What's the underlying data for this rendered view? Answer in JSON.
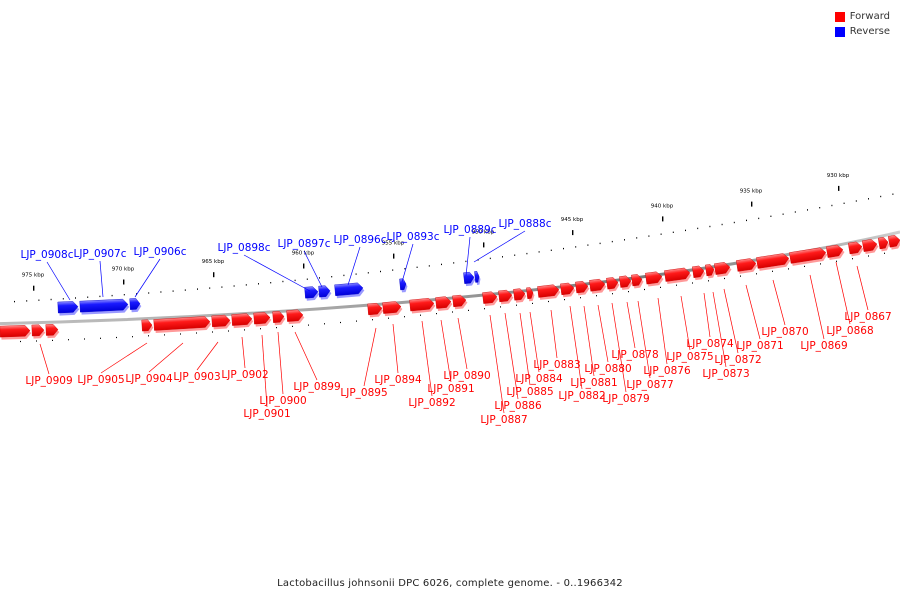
{
  "title": "Lactobacillus johnsonii DPC 6026, complete genome. - 0..1966342",
  "legend": {
    "forward_label": "Forward",
    "reverse_label": "Reverse",
    "forward_color": "#ff0000",
    "reverse_color": "#0000ff"
  },
  "colors": {
    "forward": "#ff0000",
    "reverse": "#0000ff",
    "axis": "#888888",
    "tick": "#000000"
  },
  "scale_labels": [
    "930 kbp",
    "935 kbp",
    "940 kbp",
    "945 kbp",
    "950 kbp",
    "955 kbp",
    "960 kbp",
    "965 kbp",
    "970 kbp",
    "975 kbp"
  ],
  "genes": [
    {
      "label": "LJP_0867",
      "strand": "forward"
    },
    {
      "label": "LJP_0868",
      "strand": "forward"
    },
    {
      "label": "LJP_0869",
      "strand": "forward"
    },
    {
      "label": "LJP_0870",
      "strand": "forward"
    },
    {
      "label": "LJP_0871",
      "strand": "forward"
    },
    {
      "label": "LJP_0872",
      "strand": "forward"
    },
    {
      "label": "LJP_0873",
      "strand": "forward"
    },
    {
      "label": "LJP_0874",
      "strand": "forward"
    },
    {
      "label": "LJP_0875",
      "strand": "forward"
    },
    {
      "label": "LJP_0876",
      "strand": "forward"
    },
    {
      "label": "LJP_0877",
      "strand": "forward"
    },
    {
      "label": "LJP_0878",
      "strand": "forward"
    },
    {
      "label": "LJP_0879",
      "strand": "forward"
    },
    {
      "label": "LJP_0880",
      "strand": "forward"
    },
    {
      "label": "LJP_0881",
      "strand": "forward"
    },
    {
      "label": "LJP_0882",
      "strand": "forward"
    },
    {
      "label": "LJP_0883",
      "strand": "forward"
    },
    {
      "label": "LJP_0884",
      "strand": "forward"
    },
    {
      "label": "LJP_0885",
      "strand": "forward"
    },
    {
      "label": "LJP_0886",
      "strand": "forward"
    },
    {
      "label": "LJP_0887",
      "strand": "forward"
    },
    {
      "label": "LJP_0888c",
      "strand": "reverse"
    },
    {
      "label": "LJP_0889c",
      "strand": "reverse"
    },
    {
      "label": "LJP_0890",
      "strand": "forward"
    },
    {
      "label": "LJP_0891",
      "strand": "forward"
    },
    {
      "label": "LJP_0892",
      "strand": "forward"
    },
    {
      "label": "LJP_0893c",
      "strand": "reverse"
    },
    {
      "label": "LJP_0894",
      "strand": "forward"
    },
    {
      "label": "LJP_0895",
      "strand": "forward"
    },
    {
      "label": "LJP_0896c",
      "strand": "reverse"
    },
    {
      "label": "LJP_0897c",
      "strand": "reverse"
    },
    {
      "label": "LJP_0898c",
      "strand": "reverse"
    },
    {
      "label": "LJP_0899",
      "strand": "forward"
    },
    {
      "label": "LJP_0900",
      "strand": "forward"
    },
    {
      "label": "LJP_0901",
      "strand": "forward"
    },
    {
      "label": "LJP_0902",
      "strand": "forward"
    },
    {
      "label": "LJP_0903",
      "strand": "forward"
    },
    {
      "label": "LJP_0904",
      "strand": "forward"
    },
    {
      "label": "LJP_0905",
      "strand": "forward"
    },
    {
      "label": "LJP_0906c",
      "strand": "reverse"
    },
    {
      "label": "LJP_0907c",
      "strand": "reverse"
    },
    {
      "label": "LJP_0908c",
      "strand": "reverse"
    },
    {
      "label": "LJP_0909",
      "strand": "forward"
    }
  ]
}
